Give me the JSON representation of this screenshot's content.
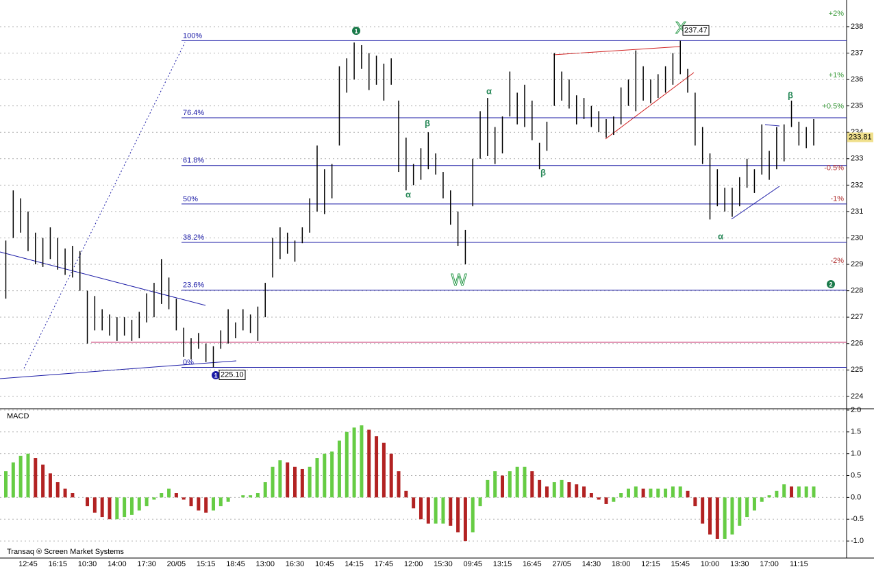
{
  "chart_data": {
    "type": "ohlc",
    "categories": [
      null,
      null,
      null,
      "12:45",
      null,
      null,
      null,
      "16:15",
      null,
      null,
      null,
      "10:30",
      null,
      null,
      null,
      "14:00",
      null,
      null,
      null,
      "17:30",
      null,
      null,
      null,
      "20/05",
      null,
      null,
      null,
      "15:15",
      null,
      null,
      null,
      "18:45",
      null,
      null,
      null,
      "13:00",
      null,
      null,
      null,
      "16:30",
      null,
      null,
      null,
      "10:45",
      null,
      null,
      null,
      "14:15",
      null,
      null,
      null,
      "17:45",
      null,
      null,
      null,
      "12:00",
      null,
      null,
      null,
      "15:30",
      null,
      null,
      null,
      "09:45",
      null,
      null,
      null,
      "13:15",
      null,
      null,
      null,
      "16:45",
      null,
      null,
      null,
      "27/05",
      null,
      null,
      null,
      "14:30",
      null,
      null,
      null,
      "18:00",
      null,
      null,
      null,
      "12:15",
      null,
      null,
      null,
      "15:45",
      null,
      null,
      null,
      "10:00",
      null,
      null,
      null,
      "13:30",
      null,
      null,
      null,
      "17:00",
      null,
      null,
      null,
      "11:15",
      null,
      null
    ],
    "price": {
      "color": "#000000",
      "low": [
        227.7,
        230,
        230.2,
        229.5,
        229,
        228.9,
        229.2,
        228.8,
        228.6,
        228.5,
        228,
        226,
        226.5,
        226.5,
        226.3,
        226.1,
        226.3,
        226.1,
        226.2,
        226.8,
        227,
        227.5,
        227.3,
        226.5,
        225.5,
        225.4,
        225.8,
        225.3,
        225.1,
        225.8,
        226,
        226.2,
        226.5,
        226.4,
        226.1,
        227,
        228.5,
        229.2,
        229.4,
        229.1,
        229.8,
        230.2,
        231,
        230.9,
        231.5,
        233.5,
        235.5,
        236,
        236.4,
        235.6,
        235.8,
        235.2,
        235.8,
        232.5,
        231.8,
        232,
        232.2,
        232.6,
        232.4,
        231.5,
        230.5,
        229.7,
        229,
        231.2,
        233,
        233.1,
        232.8,
        233.2,
        234.6,
        234.3,
        234.2,
        233.7,
        232.6,
        233.3,
        235,
        235.2,
        234.9,
        234.3,
        234.5,
        234.2,
        234,
        233.8,
        233.9,
        234.3,
        235,
        234.8,
        235.2,
        235.1,
        235.3,
        235.5,
        235.8,
        236.2,
        235.5,
        233.5,
        232.8,
        230.7,
        231.2,
        231,
        230.8,
        231.2,
        231.9,
        231.7,
        232.4,
        232.2,
        232.6,
        232.9,
        234.2,
        233.5,
        233.4,
        233.5
      ],
      "high": [
        229.9,
        231.8,
        231.5,
        231,
        230.2,
        230,
        230.4,
        230,
        229.6,
        229.7,
        229.5,
        228,
        227.8,
        227.3,
        227.1,
        227,
        227,
        226.9,
        227.2,
        227.9,
        228.3,
        229.2,
        228.5,
        227.7,
        226.6,
        226.2,
        226.4,
        226,
        225.9,
        226.5,
        227.3,
        226.8,
        227.3,
        227.1,
        227.4,
        228.3,
        230,
        230.4,
        230.2,
        229.9,
        230.4,
        231.5,
        233.5,
        232.6,
        232.8,
        236.5,
        236.8,
        237.4,
        237.3,
        237,
        236.9,
        236.6,
        236.8,
        235.2,
        233.8,
        232.8,
        233.4,
        234,
        233.2,
        232.5,
        231.8,
        231,
        230.3,
        233,
        234.8,
        235.3,
        234.2,
        234.6,
        236.3,
        235.5,
        235.8,
        235.2,
        233.6,
        234.4,
        237,
        236.3,
        236,
        235.4,
        235.3,
        235,
        234.8,
        234.5,
        234.6,
        235.7,
        236,
        237.1,
        236.5,
        236,
        236.2,
        236.5,
        237,
        237.47,
        236.4,
        235.5,
        234.2,
        233.2,
        232.6,
        231.9,
        231.9,
        232.3,
        233,
        232.6,
        234.3,
        233.3,
        234.2,
        234.3,
        235.2,
        234.4,
        234.2,
        234.5
      ]
    },
    "ylim": [
      223.53,
      239.01
    ],
    "yticks": [
      224,
      225,
      226,
      227,
      228,
      229,
      230,
      231,
      232,
      233,
      234,
      235,
      236,
      237,
      238
    ],
    "grid": true,
    "levels": [
      {
        "label": "100%",
        "value": 237.47
      },
      {
        "label": "76.4%",
        "value": 234.55
      },
      {
        "label": "61.8%",
        "value": 232.74
      },
      {
        "label": "50%",
        "value": 231.285
      },
      {
        "label": "38.2%",
        "value": 229.83
      },
      {
        "label": "23.6%",
        "value": 228.02
      },
      {
        "label": "0%",
        "value": 225.1
      }
    ],
    "level_color": "#1a1aa6",
    "support": {
      "value": 226.05,
      "color": "#c0185a"
    },
    "price_tags": [
      {
        "value": 237.47,
        "label": "237.47"
      },
      {
        "value": 225.1,
        "label": "225.10"
      },
      {
        "value": 233.81,
        "label": "233.81"
      }
    ],
    "pct_labels": [
      {
        "value": 238.49,
        "label": "+2%",
        "color": "#3a9a3a"
      },
      {
        "value": 236.15,
        "label": "+1%",
        "color": "#3a9a3a"
      },
      {
        "value": 234.98,
        "label": "+0.5%",
        "color": "#3a9a3a"
      },
      {
        "value": 232.64,
        "label": "-0.5%",
        "color": "#b03030"
      },
      {
        "value": 231.47,
        "label": "-1%",
        "color": "#b03030"
      },
      {
        "value": 229.13,
        "label": "-2%",
        "color": "#b03030"
      }
    ],
    "waves": [
      "1",
      "X",
      "W",
      "2",
      "1",
      "α",
      "β",
      "α",
      "β",
      "α",
      "β"
    ],
    "macd": {
      "title": "MACD",
      "values": [
        0.6,
        0.8,
        0.95,
        1.0,
        0.9,
        0.75,
        0.55,
        0.35,
        0.2,
        0.1,
        0.0,
        -0.2,
        -0.35,
        -0.45,
        -0.5,
        -0.5,
        -0.45,
        -0.4,
        -0.3,
        -0.2,
        -0.05,
        0.1,
        0.2,
        0.1,
        -0.05,
        -0.2,
        -0.3,
        -0.35,
        -0.3,
        -0.2,
        -0.1,
        0.0,
        0.05,
        0.05,
        0.1,
        0.35,
        0.7,
        0.85,
        0.8,
        0.7,
        0.65,
        0.7,
        0.9,
        1.0,
        1.05,
        1.3,
        1.5,
        1.6,
        1.65,
        1.55,
        1.4,
        1.25,
        1.0,
        0.6,
        0.15,
        -0.25,
        -0.5,
        -0.6,
        -0.6,
        -0.6,
        -0.65,
        -0.8,
        -1.0,
        -0.8,
        -0.2,
        0.4,
        0.6,
        0.5,
        0.6,
        0.7,
        0.7,
        0.6,
        0.4,
        0.25,
        0.35,
        0.4,
        0.35,
        0.3,
        0.25,
        0.1,
        -0.05,
        -0.15,
        -0.1,
        0.1,
        0.2,
        0.25,
        0.2,
        0.2,
        0.2,
        0.2,
        0.25,
        0.25,
        0.15,
        -0.2,
        -0.6,
        -0.85,
        -0.95,
        -0.95,
        -0.85,
        -0.65,
        -0.45,
        -0.3,
        -0.1,
        0.05,
        0.15,
        0.3,
        0.25,
        0.25,
        0.25,
        0.25
      ],
      "ylim": [
        -1.39,
        2.03
      ],
      "yticks": [
        {
          "value": 2,
          "label": "2.0"
        },
        1.5,
        {
          "value": 1,
          "label": "1.0"
        },
        0.5,
        {
          "value": 0,
          "label": "0.0"
        },
        -0.5,
        {
          "value": -1,
          "label": "-1.0"
        }
      ],
      "up_color": "#66cc44",
      "down_color": "#b22222"
    },
    "footer": "Transaq ® Screen Market Systems"
  }
}
